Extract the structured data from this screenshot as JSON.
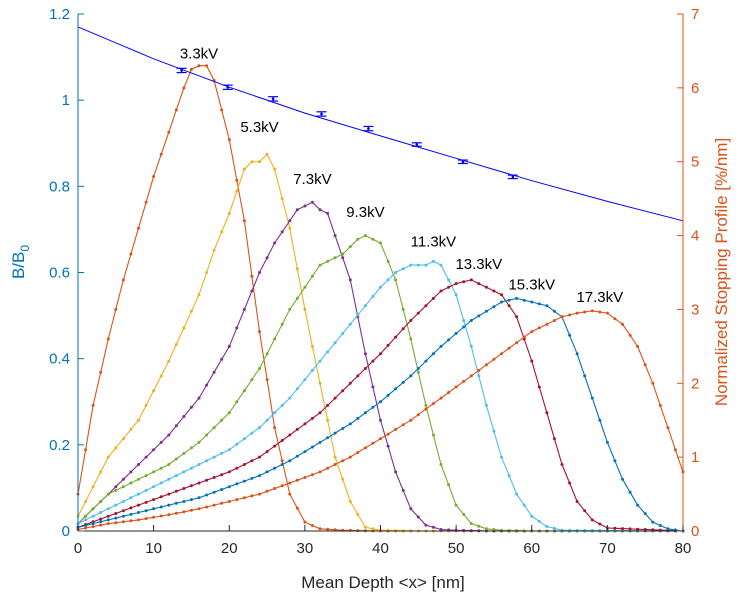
{
  "chart_data": {
    "type": "line",
    "title": "",
    "xlabel": "Mean Depth <x> [nm]",
    "ylabel_left": "B/B",
    "ylabel_left_sub": "0",
    "ylabel_right": "Normalized Stopping Profile [%/nm]",
    "xlim": [
      0,
      80
    ],
    "ylim_left": [
      0,
      1.2
    ],
    "ylim_right": [
      0,
      7
    ],
    "xticks": [
      0,
      10,
      20,
      30,
      40,
      50,
      60,
      70,
      80
    ],
    "yticks_left": [
      0,
      0.2,
      0.4,
      0.6,
      0.8,
      1,
      1.2
    ],
    "yticks_right": [
      0,
      1,
      2,
      3,
      4,
      5,
      6,
      7
    ],
    "left_axis_color": "#0072BD",
    "right_axis_color": "#D95319",
    "grid": false,
    "legend": "none",
    "field_fit": {
      "axis": "left",
      "color": "#0000ff",
      "x": [
        0,
        10,
        20,
        30,
        40,
        50,
        60,
        70,
        80
      ],
      "y": [
        1.17,
        1.096,
        1.03,
        0.97,
        0.917,
        0.865,
        0.813,
        0.765,
        0.72
      ]
    },
    "field_points": {
      "axis": "left",
      "color": "#0000ff",
      "x": [
        13.7,
        19.8,
        25.8,
        32.2,
        38.4,
        44.8,
        50.9,
        57.5
      ],
      "y": [
        1.069,
        1.03,
        1.003,
        0.968,
        0.934,
        0.897,
        0.857,
        0.822
      ],
      "err": [
        0.005,
        0.005,
        0.005,
        0.005,
        0.005,
        0.004,
        0.004,
        0.004
      ]
    },
    "profiles": [
      {
        "label": "3.3kV",
        "color": "#D95319",
        "axis": "right",
        "x": [
          0,
          2,
          4,
          6,
          8,
          10,
          12,
          14,
          15,
          16,
          17,
          18,
          19,
          20,
          22,
          24,
          26,
          28,
          30,
          32,
          35,
          40,
          50,
          60,
          80
        ],
        "y": [
          0.5,
          1.7,
          2.6,
          3.4,
          4.1,
          4.8,
          5.4,
          6.0,
          6.25,
          6.3,
          6.3,
          6.1,
          5.7,
          5.3,
          4.2,
          2.7,
          1.4,
          0.5,
          0.12,
          0.03,
          0.01,
          0,
          0,
          0,
          0
        ]
      },
      {
        "label": "5.3kV",
        "color": "#EDB120",
        "axis": "right",
        "x": [
          0,
          4,
          8,
          12,
          16,
          18,
          20,
          22,
          23,
          24,
          25,
          26,
          28,
          30,
          32,
          34,
          36,
          38,
          40,
          45,
          80
        ],
        "y": [
          0.2,
          1.0,
          1.5,
          2.3,
          3.2,
          3.8,
          4.3,
          4.9,
          5.0,
          5.0,
          5.1,
          4.9,
          4.1,
          3.0,
          2.0,
          1.0,
          0.4,
          0.05,
          0.01,
          0,
          0
        ]
      },
      {
        "label": "7.3kV",
        "color": "#7E2F8E",
        "axis": "right",
        "x": [
          0,
          4,
          8,
          12,
          16,
          20,
          24,
          26,
          28,
          29,
          30,
          31,
          32,
          33,
          34,
          36,
          38,
          40,
          42,
          44,
          46,
          48,
          50,
          55,
          80
        ],
        "y": [
          0.1,
          0.5,
          0.9,
          1.3,
          1.8,
          2.5,
          3.5,
          3.9,
          4.2,
          4.35,
          4.4,
          4.45,
          4.35,
          4.3,
          4.0,
          3.4,
          2.4,
          1.5,
          0.8,
          0.3,
          0.08,
          0.02,
          0.01,
          0,
          0
        ]
      },
      {
        "label": "9.3kV",
        "color": "#77AC30",
        "axis": "right",
        "x": [
          0,
          4,
          8,
          12,
          16,
          20,
          24,
          28,
          32,
          35,
          37,
          38,
          39,
          40,
          42,
          44,
          46,
          48,
          50,
          52,
          54,
          56,
          60,
          80
        ],
        "y": [
          0.1,
          0.5,
          0.7,
          0.9,
          1.2,
          1.6,
          2.2,
          3.0,
          3.6,
          3.75,
          3.95,
          4.0,
          3.95,
          3.9,
          3.4,
          2.6,
          1.7,
          0.9,
          0.35,
          0.1,
          0.03,
          0.01,
          0,
          0
        ]
      },
      {
        "label": "11.3kV",
        "color": "#4DBEEE",
        "axis": "right",
        "x": [
          0,
          4,
          8,
          12,
          16,
          20,
          24,
          28,
          32,
          36,
          40,
          42,
          44,
          46,
          47,
          48,
          50,
          52,
          54,
          56,
          58,
          60,
          62,
          64,
          80
        ],
        "y": [
          0.1,
          0.3,
          0.5,
          0.7,
          0.9,
          1.1,
          1.4,
          1.8,
          2.3,
          2.8,
          3.3,
          3.5,
          3.6,
          3.6,
          3.65,
          3.6,
          3.2,
          2.5,
          1.7,
          1.0,
          0.5,
          0.2,
          0.06,
          0.01,
          0
        ]
      },
      {
        "label": "13.3kV",
        "color": "#A2142F",
        "axis": "right",
        "x": [
          0,
          4,
          8,
          12,
          16,
          20,
          24,
          28,
          32,
          36,
          40,
          44,
          48,
          50,
          52,
          54,
          56,
          58,
          60,
          62,
          64,
          66,
          68,
          70,
          80
        ],
        "y": [
          0.05,
          0.2,
          0.35,
          0.5,
          0.65,
          0.8,
          1.0,
          1.3,
          1.6,
          2.0,
          2.4,
          2.85,
          3.25,
          3.35,
          3.4,
          3.3,
          3.2,
          2.9,
          2.3,
          1.6,
          0.9,
          0.4,
          0.15,
          0.04,
          0
        ]
      },
      {
        "label": "15.3kV",
        "color": "#0072BD",
        "axis": "right",
        "x": [
          0,
          4,
          8,
          12,
          16,
          20,
          24,
          28,
          32,
          36,
          40,
          44,
          48,
          52,
          56,
          58,
          60,
          62,
          64,
          66,
          68,
          70,
          72,
          74,
          76,
          78,
          80
        ],
        "y": [
          0.05,
          0.15,
          0.25,
          0.35,
          0.45,
          0.6,
          0.75,
          0.95,
          1.2,
          1.45,
          1.75,
          2.1,
          2.5,
          2.85,
          3.1,
          3.15,
          3.1,
          3.05,
          2.9,
          2.4,
          1.8,
          1.2,
          0.7,
          0.35,
          0.12,
          0.03,
          0
        ]
      },
      {
        "label": "17.3kV",
        "color": "#D95319",
        "axis": "right",
        "x": [
          0,
          4,
          8,
          12,
          16,
          20,
          24,
          28,
          32,
          36,
          40,
          44,
          48,
          52,
          56,
          60,
          64,
          66,
          68,
          70,
          72,
          74,
          76,
          78,
          80
        ],
        "y": [
          0.02,
          0.1,
          0.15,
          0.22,
          0.3,
          0.4,
          0.5,
          0.65,
          0.8,
          1.0,
          1.25,
          1.5,
          1.8,
          2.1,
          2.4,
          2.7,
          2.9,
          2.95,
          2.98,
          2.95,
          2.8,
          2.5,
          2.0,
          1.4,
          0.8
        ]
      }
    ],
    "annotations": [
      {
        "text": "3.3kV",
        "x": 16,
        "y": 6.4
      },
      {
        "text": "5.3kV",
        "x": 24,
        "y": 5.4
      },
      {
        "text": "7.3kV",
        "x": 31,
        "y": 4.7
      },
      {
        "text": "9.3kV",
        "x": 38,
        "y": 4.25
      },
      {
        "text": "11.3kV",
        "x": 47,
        "y": 3.85
      },
      {
        "text": "13.3kV",
        "x": 53,
        "y": 3.55
      },
      {
        "text": "15.3kV",
        "x": 60,
        "y": 3.27
      },
      {
        "text": "17.3kV",
        "x": 69,
        "y": 3.1
      }
    ]
  }
}
